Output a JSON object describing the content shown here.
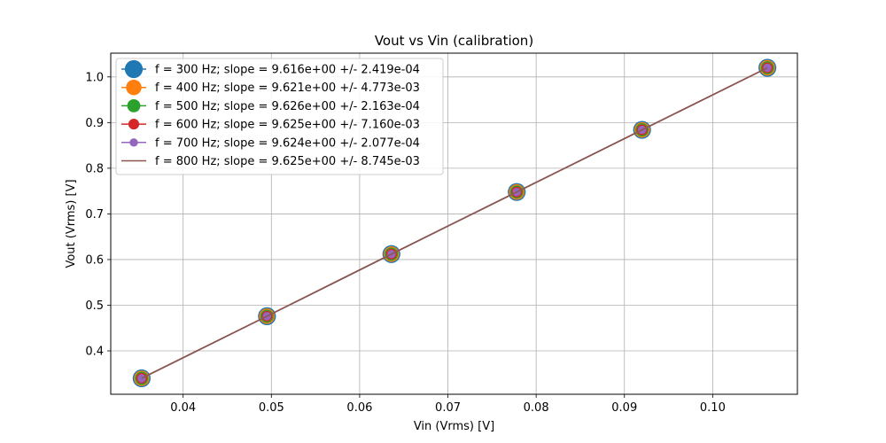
{
  "chart_data": {
    "type": "line",
    "title": "Vout vs Vin (calibration)",
    "xlabel": "Vin (Vrms) [V]",
    "ylabel": "Vout (Vrms) [V]",
    "xlim": [
      0.0318,
      0.1096
    ],
    "ylim": [
      0.305,
      1.052
    ],
    "xticks": [
      "0.04",
      "0.05",
      "0.06",
      "0.07",
      "0.08",
      "0.09",
      "0.10"
    ],
    "yticks": [
      "0.4",
      "0.5",
      "0.6",
      "0.7",
      "0.8",
      "0.9",
      "1.0"
    ],
    "grid": true,
    "legend_position": "upper-left",
    "x": [
      0.0353,
      0.0495,
      0.0636,
      0.0778,
      0.092,
      0.1062
    ],
    "series": [
      {
        "name": "f = 300 Hz; slope = 9.616e+00 +/- 2.419e-04",
        "color": "#1f77b4",
        "marker": "circle",
        "marker_scale": 6,
        "values": [
          0.34,
          0.476,
          0.612,
          0.748,
          0.884,
          1.02
        ]
      },
      {
        "name": "f = 400 Hz; slope = 9.621e+00 +/- 4.773e-03",
        "color": "#ff7f0e",
        "marker": "circle",
        "marker_scale": 5,
        "values": [
          0.34,
          0.476,
          0.612,
          0.748,
          0.884,
          1.02
        ]
      },
      {
        "name": "f = 500 Hz; slope = 9.626e+00 +/- 2.163e-04",
        "color": "#2ca02c",
        "marker": "circle",
        "marker_scale": 4,
        "values": [
          0.34,
          0.476,
          0.612,
          0.748,
          0.884,
          1.02
        ]
      },
      {
        "name": "f = 600 Hz; slope = 9.625e+00 +/- 7.160e-03",
        "color": "#d62728",
        "marker": "circle",
        "marker_scale": 3,
        "values": [
          0.34,
          0.476,
          0.612,
          0.748,
          0.884,
          1.02
        ]
      },
      {
        "name": "f = 700 Hz; slope = 9.624e+00 +/- 2.077e-04",
        "color": "#9467bd",
        "marker": "circle",
        "marker_scale": 2,
        "values": [
          0.34,
          0.476,
          0.612,
          0.748,
          0.884,
          1.02
        ]
      },
      {
        "name": "f = 800 Hz; slope = 9.625e+00 +/- 8.745e-03",
        "color": "#8c564b",
        "marker": "none",
        "marker_scale": 0,
        "values": [
          0.34,
          0.476,
          0.612,
          0.748,
          0.884,
          1.02
        ]
      }
    ]
  }
}
